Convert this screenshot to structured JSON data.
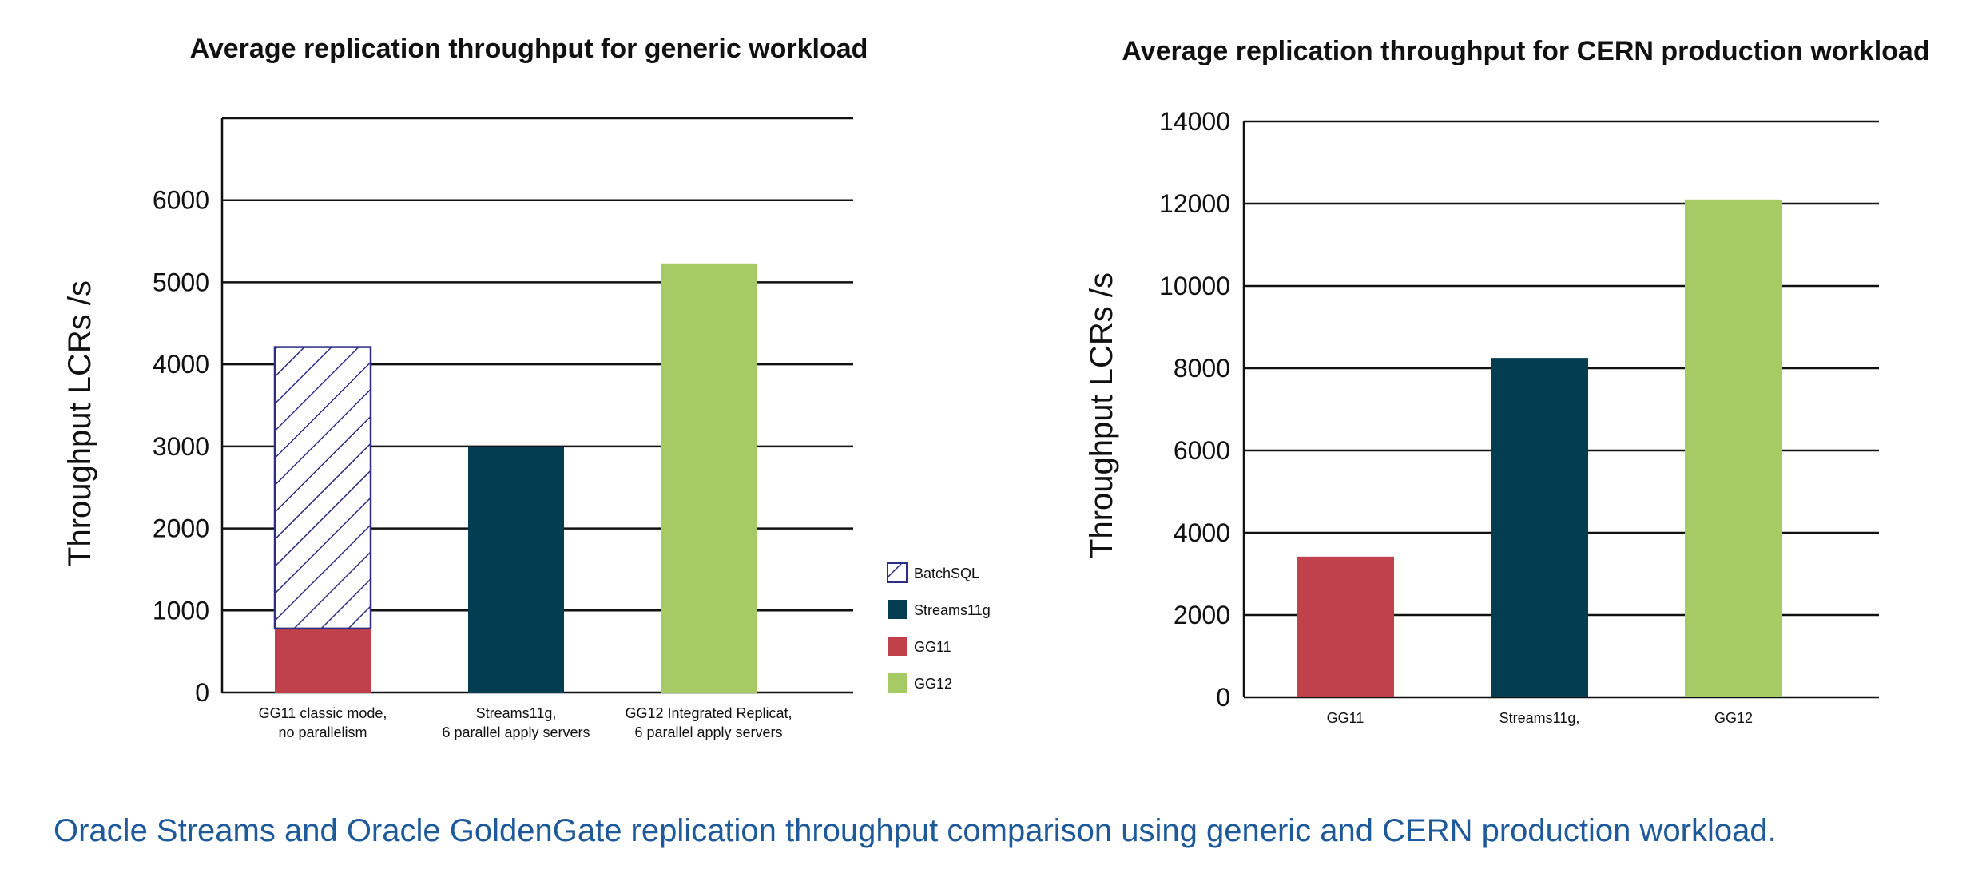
{
  "caption": "Oracle Streams and Oracle GoldenGate replication throughput comparison using generic and CERN production workload.",
  "colors": {
    "GG11": "#c1414a",
    "Streams11g": "#023d52",
    "GG12": "#a6cb64",
    "BatchSQL": "#2b2e82",
    "caption": "#1e5a9a"
  },
  "chart_data": [
    {
      "type": "bar",
      "stacked": true,
      "title": "Average replication throughput for generic workload",
      "ylabel": "Throughput LCRs /s",
      "xlabel": "",
      "ylim": [
        0,
        7000
      ],
      "yticks": [
        0,
        1000,
        2000,
        3000,
        4000,
        5000,
        6000
      ],
      "grid": true,
      "legend_position": "right",
      "categories": [
        [
          "GG11 classic mode,",
          "no parallelism"
        ],
        [
          "Streams11g,",
          "6 parallel apply servers"
        ],
        [
          "GG12 Integrated Replicat,",
          "6 parallel apply servers"
        ]
      ],
      "series": [
        {
          "name": "GG11",
          "values": [
            780,
            0,
            0
          ]
        },
        {
          "name": "BatchSQL",
          "values": [
            3430,
            0,
            0
          ],
          "pattern": "hatch"
        },
        {
          "name": "Streams11g",
          "values": [
            0,
            3000,
            0
          ]
        },
        {
          "name": "GG12",
          "values": [
            0,
            0,
            5230
          ]
        }
      ],
      "legend": [
        "BatchSQL",
        "Streams11g",
        "GG11",
        "GG12"
      ]
    },
    {
      "type": "bar",
      "title": "Average replication throughput for CERN production workload",
      "ylabel": "Throughput LCRs /s",
      "xlabel": "",
      "ylim": [
        0,
        14000
      ],
      "yticks": [
        0,
        2000,
        4000,
        6000,
        8000,
        10000,
        12000,
        14000
      ],
      "grid": true,
      "categories": [
        "GG11",
        "Streams11g,",
        "GG12"
      ],
      "values": [
        3420,
        8250,
        12100
      ],
      "bar_colors": [
        "GG11",
        "Streams11g",
        "GG12"
      ]
    }
  ]
}
